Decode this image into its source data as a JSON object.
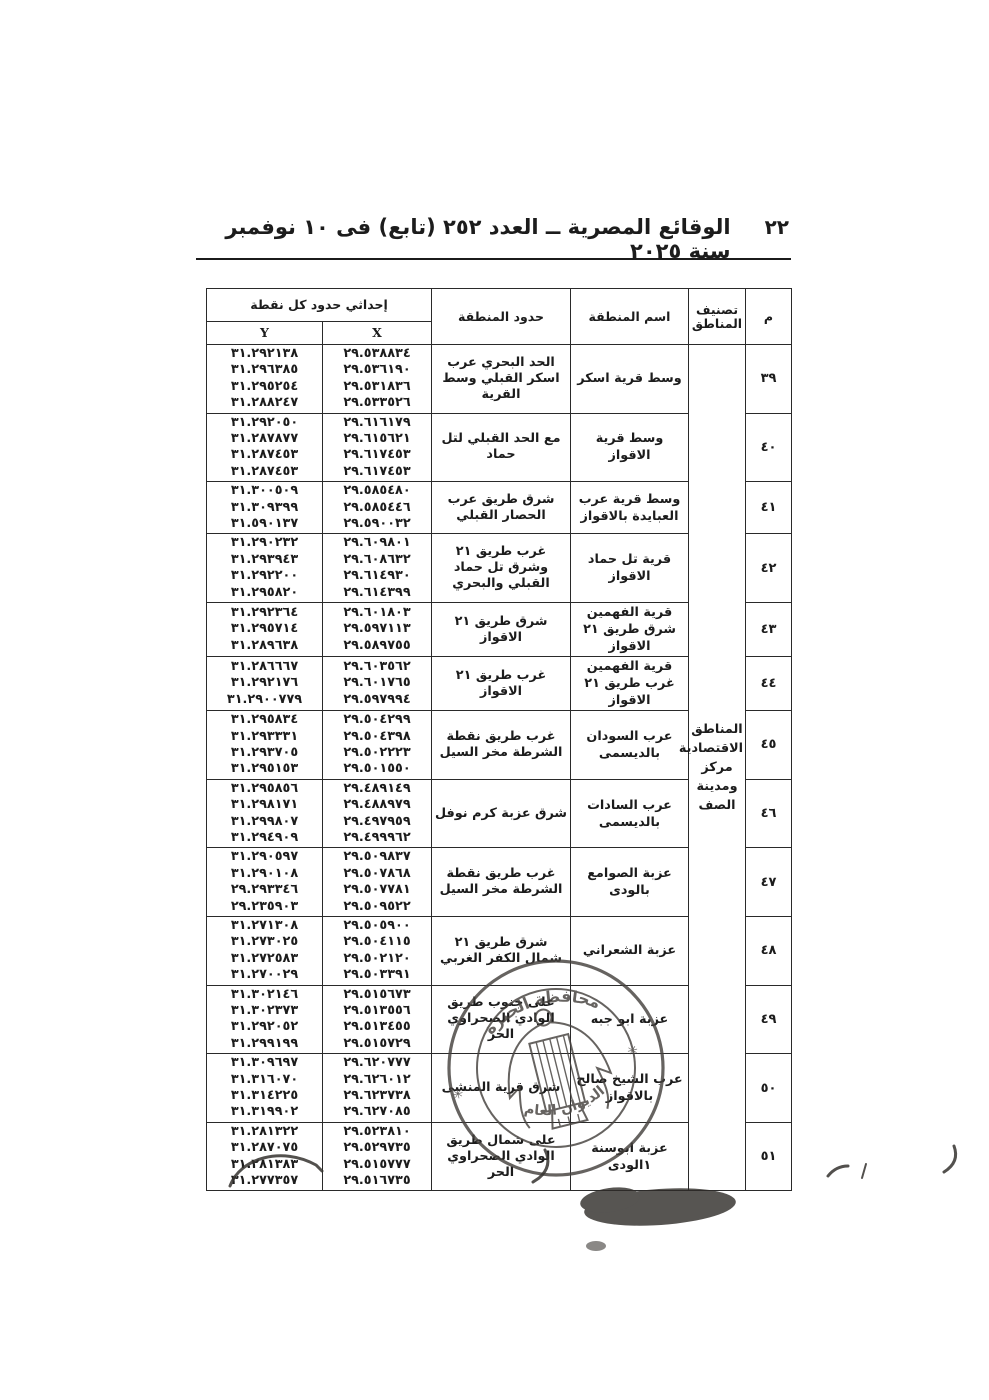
{
  "page": {
    "number": "٢٢",
    "title": "الوقائع المصرية ــ العدد ٢٥٢ (تابع) فى ١٠ نوفمبر سنة ٢٠٢٥"
  },
  "table": {
    "headers": {
      "no": "م",
      "classification": "تصنيف\nالمناطق",
      "name": "اسم المنطقة",
      "boundary": "حدود المنطقة",
      "coords": "إحداثي حدود كل نقطة",
      "x": "X",
      "y": "Y"
    },
    "classification_value": "المناطق\nالاقتصادية\nمركز\nومدينة\nالصف",
    "rows": [
      {
        "no": "٣٩",
        "name": "وسط قرية اسكر",
        "boundary": "الحد البحري عرب اسكر القبلي وسط القرية",
        "y": [
          "٣١.٢٩٢١٣٨",
          "٣١.٢٩٦٣٨٥",
          "٣١.٢٩٥٢٥٤",
          "٣١.٢٨٨٢٤٧"
        ],
        "x": [
          "٢٩.٥٣٨٨٣٤",
          "٢٩.٥٣٦١٩٠",
          "٢٩.٥٣١٨٣٦",
          "٢٩.٥٣٣٥٢٦"
        ]
      },
      {
        "no": "٤٠",
        "name": "وسط قرية الاقواز",
        "boundary": "مع الحد القبلي لتل حماد",
        "y": [
          "٣١.٢٩٢٠٥٠",
          "٣١.٢٨٧٨٧٧",
          "٣١.٢٨٧٤٥٣",
          "٣١.٢٨٧٤٥٣"
        ],
        "x": [
          "٢٩.٦١٦١٧٩",
          "٢٩.٦١٥٦٢١",
          "٢٩.٦١٧٤٥٣",
          "٢٩.٦١٧٤٥٣"
        ]
      },
      {
        "no": "٤١",
        "name": "وسط قرية عرب العبايدة بالاقواز",
        "boundary": "شرق طريق عرب الحصار القبلي",
        "y": [
          "٣١.٣٠٠٥٠٩",
          "٣١.٣٠٩٣٩٩",
          "٣١.٥٩٠١٣٧"
        ],
        "x": [
          "٢٩.٥٨٥٤٨٠",
          "٢٩.٥٨٥٤٤٦",
          "٢٩.٥٩٠٠٣٢"
        ]
      },
      {
        "no": "٤٢",
        "name": "قرية تل حماد الاقواز",
        "boundary": "غرب طريق ٢١ وشرق تل حماد القبلي والبحري",
        "y": [
          "٣١.٢٩٠٢٣٢",
          "٣١.٢٩٣٩٤٣",
          "٣١.٢٩٢٢٠٠",
          "٣١.٢٩٥٨٢٠"
        ],
        "x": [
          "٢٩.٦٠٩٨٠١",
          "٢٩.٦٠٨٦٣٢",
          "٢٩.٦١٤٩٣٠",
          "٢٩.٦١٤٣٩٩"
        ]
      },
      {
        "no": "٤٣",
        "name": "قرية الفهمين شرق طريق ٢١ الاقواز",
        "boundary": "شرق طريق ٢١ الاقواز",
        "y": [
          "٣١.٢٩٢٣٦٤",
          "٣١.٢٩٥٧١٤",
          "٣١.٢٨٩٦٣٨"
        ],
        "x": [
          "٢٩.٦٠١٨٠٣",
          "٢٩.٥٩٧١١٣",
          "٢٩.٥٨٩٧٥٥"
        ]
      },
      {
        "no": "٤٤",
        "name": "قرية الفهمين غرب طريق ٢١ الاقواز",
        "boundary": "غرب طريق ٢١ الاقواز",
        "y": [
          "٣١.٢٨٦٦٦٧",
          "٣١.٢٩٢١٧٦",
          "٣١.٢٩٠٠٧٧٩"
        ],
        "x": [
          "٢٩.٦٠٣٥٦٢",
          "٢٩.٦٠١٧٦٥",
          "٢٩.٥٩٧٩٩٤"
        ]
      },
      {
        "no": "٤٥",
        "name": "عرب السودان بالديسمى",
        "boundary": "غرب طريق نقطة الشرطة مخر السيل",
        "y": [
          "٣١.٢٩٥٨٣٤",
          "٣١.٢٩٣٣٣١",
          "٣١.٢٩٣٧٠٥",
          "٣١.٢٩٥١٥٣"
        ],
        "x": [
          "٢٩.٥٠٤٢٩٩",
          "٢٩.٥٠٤٣٩٨",
          "٢٩.٥٠٢٢٢٣",
          "٢٩.٥٠١٥٥٠"
        ]
      },
      {
        "no": "٤٦",
        "name": "عرب السادات بالديسمى",
        "boundary": "شرق عزبة كرم نوفل",
        "y": [
          "٣١.٢٩٥٨٥٦",
          "٣١.٢٩٨١٧١",
          "٣١.٢٩٩٨٠٧",
          "٣١.٢٩٤٩٠٩"
        ],
        "x": [
          "٢٩.٤٨٩١٤٩",
          "٢٩.٤٨٨٩٧٩",
          "٢٩.٤٩٧٩٥٩",
          "٢٩.٤٩٩٩٦٢"
        ]
      },
      {
        "no": "٤٧",
        "name": "عزبة الصوامع بالودى",
        "boundary": "غرب طريق نقطة الشرطة مخر السيل",
        "y": [
          "٣١.٢٩٠٥٩٧",
          "٣١.٢٩٠١٠٨",
          "٢٩.٢٩٣٣٤٦",
          "٢٩.٢٣٥٩٠٣"
        ],
        "x": [
          "٢٩.٥٠٩٨٣٧",
          "٢٩.٥٠٧٨٦٨",
          "٢٩.٥٠٧٧٨١",
          "٢٩.٥٠٩٥٢٢"
        ]
      },
      {
        "no": "٤٨",
        "name": "عزبة الشعراني",
        "boundary": "شرق طريق ٢١ شمال الكفر الغربي",
        "y": [
          "٣١.٢٧١٣٠٨",
          "٣١.٢٧٣٠٢٥",
          "٣١.٢٧٢٥٨٣",
          "٣١.٢٧٠٠٢٩"
        ],
        "x": [
          "٢٩.٥٠٥٩٠٠",
          "٢٩.٥٠٤١١٥",
          "٢٩.٥٠٢١٢٠",
          "٢٩.٥٠٣٣٩١"
        ]
      },
      {
        "no": "٤٩",
        "name": "عزبة ابو جبه",
        "boundary": "على جنوب طريق الوادي الصحراوي الحر",
        "y": [
          "٣١.٣٠٢١٤٦",
          "٣١.٣٠٢٣٧٣",
          "٣١.٢٩٢٠٥٢",
          "٣١.٢٩٩١٩٩"
        ],
        "x": [
          "٢٩.٥١٥٦٧٣",
          "٢٩.٥١٣٥٥٦",
          "٢٩.٥١٣٤٥٥",
          "٢٩.٥١٥٧٢٩"
        ]
      },
      {
        "no": "٥٠",
        "name": "عرب الشيخ صالح بالاقواز",
        "boundary": "شرق قرية المنشى",
        "y": [
          "٣١.٣٠٩٦٩٧",
          "٣١.٣١٦٠٧٠",
          "٣١.٣١٤٢٢٥",
          "٣١.٣١٩٩٠٢"
        ],
        "x": [
          "٢٩.٦٢٠٧٧٧",
          "٢٩.٦٢٦٠١٢",
          "٢٩.٦٢٣٧٣٨",
          "٢٩.٦٢٧٠٨٥"
        ]
      },
      {
        "no": "٥١",
        "name": "عزبة ابوسنة ١الودى",
        "boundary": "على شمال طريق الوادي الصحراوي الحر",
        "y": [
          "٣١.٢٨١٣٢٢",
          "٣١.٢٨٧٠٧٥",
          "٣١.٢٨١٣٨٣",
          "٣١.٢٧٧٣٥٧"
        ],
        "x": [
          "٢٩.٥٢٣٨١٠",
          "٢٩.٥٢٩٧٣٥",
          "٢٩.٥١٥٧٧٧",
          "٢٩.٥١٦٧٣٥"
        ]
      }
    ]
  },
  "stamp": {
    "top_text": "محافظة الجيزة",
    "bottom_text": "الديوان العام"
  }
}
